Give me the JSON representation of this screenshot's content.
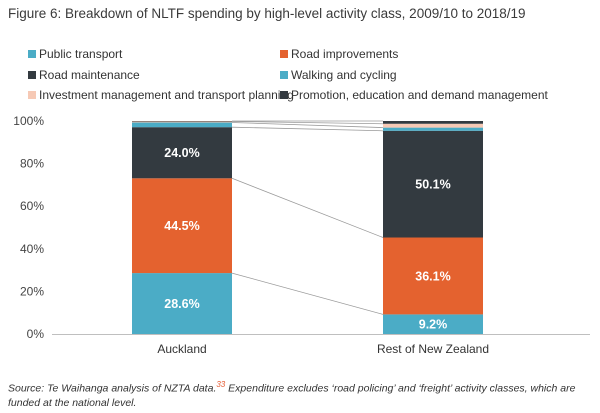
{
  "figure": {
    "title": "Figure 6: Breakdown of NLTF spending by high-level activity class, 2009/10 to 2018/19"
  },
  "colors": {
    "public_transport": "#4bacc6",
    "road_improvements": "#e4622f",
    "road_maintenance": "#333a40",
    "walking_cycling": "#4bacc6",
    "investment_management": "#f6c9b5",
    "promotion": "#333a40",
    "axis": "#bfbfbf",
    "connector": "#9a9a9a"
  },
  "chart_data": {
    "type": "bar",
    "stacked": true,
    "percent": true,
    "categories": [
      "Auckland",
      "Rest of New Zealand"
    ],
    "series": [
      {
        "name": "Public transport",
        "values": [
          28.6,
          9.2
        ],
        "labels": [
          "28.6%",
          "9.2%"
        ]
      },
      {
        "name": "Road improvements",
        "values": [
          44.5,
          36.1
        ],
        "labels": [
          "44.5%",
          "36.1%"
        ]
      },
      {
        "name": "Road maintenance",
        "values": [
          24.0,
          50.1
        ],
        "labels": [
          "24.0%",
          "50.1%"
        ]
      },
      {
        "name": "Walking and cycling",
        "values": [
          2.2,
          1.5
        ],
        "labels": [
          "",
          ""
        ]
      },
      {
        "name": "Investment management and transport planning",
        "values": [
          0.5,
          1.8
        ],
        "labels": [
          "",
          ""
        ]
      },
      {
        "name": "Promotion, education and demand management",
        "values": [
          0.2,
          1.3
        ],
        "labels": [
          "",
          ""
        ]
      }
    ],
    "ylim": [
      0,
      100
    ],
    "yticks": [
      "0%",
      "20%",
      "40%",
      "60%",
      "80%",
      "100%"
    ],
    "xlabel": "",
    "ylabel": "",
    "legend_position": "top",
    "grid": false
  },
  "source": {
    "lead": "Source: Te Waihanga analysis of NZTA data.",
    "ref": "33",
    "rest": " Expenditure excludes ‘road policing’ and ‘freight’ activity classes, which are funded at the national level."
  }
}
